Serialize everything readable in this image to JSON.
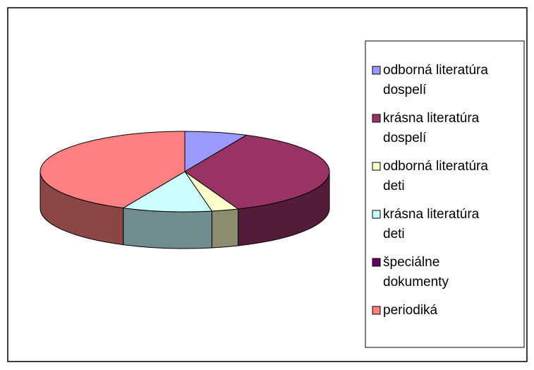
{
  "chart_data": {
    "type": "pie",
    "three_d": true,
    "categories": [
      "odborná literatúra dospelí",
      "krásna literatúra dospelí",
      "odborná literatúra deti",
      "krásna literatúra deti",
      "špeciálne dokumenty",
      "periodiká"
    ],
    "values": [
      7,
      37,
      3,
      10,
      0,
      43
    ],
    "colors": [
      "#9999ff",
      "#993366",
      "#ffffcc",
      "#ccffff",
      "#660066",
      "#ff8080"
    ],
    "legend": "right"
  }
}
